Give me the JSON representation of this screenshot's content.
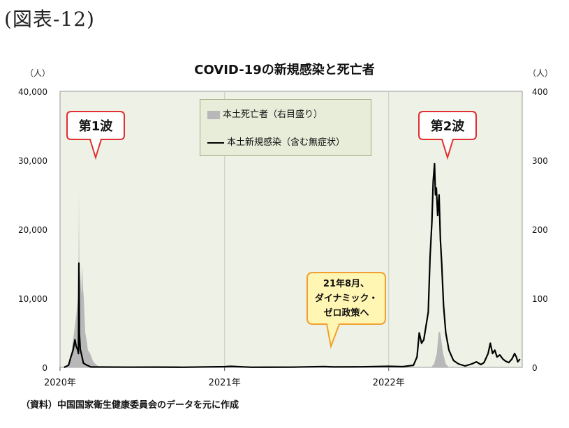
{
  "figure_label": "(図表-12)",
  "source_note": "（資料）中国国家衛生健康委員会のデータを元に作成",
  "colors": {
    "plot_bg": "#eef2e6",
    "deaths_fill": "#b8b8b8",
    "cases_line": "#000000",
    "callout_red_border": "#e03030",
    "callout_yellow_fill": "#fff6b3",
    "callout_yellow_border": "#f0a030"
  },
  "chart_data": {
    "type": "area",
    "title": "COVID-19の新規感染と死亡者",
    "left_unit": "（人）",
    "right_unit": "（人）",
    "y_left_range": [
      0,
      40000
    ],
    "y_right_range": [
      0,
      400
    ],
    "y_left_ticks": [
      "0",
      "10,000",
      "20,000",
      "30,000",
      "40,000"
    ],
    "y_right_ticks": [
      "0",
      "100",
      "200",
      "300",
      "400"
    ],
    "x_ticks": [
      "2020年",
      "2021年",
      "2022年"
    ],
    "grid": "vertical year lines",
    "legend_position": "top-center",
    "legend": [
      "本土死亡者（右目盛り）",
      "本土新規感染（含む無症状）"
    ],
    "series": [
      {
        "name": "本土新規感染（含む無症状）",
        "axis": "left",
        "style": "line",
        "points": [
          [
            "2020-01-10",
            0
          ],
          [
            "2020-01-20",
            300
          ],
          [
            "2020-01-25",
            1500
          ],
          [
            "2020-01-30",
            2500
          ],
          [
            "2020-02-03",
            4000
          ],
          [
            "2020-02-06",
            3000
          ],
          [
            "2020-02-09",
            2600
          ],
          [
            "2020-02-11",
            2000
          ],
          [
            "2020-02-12",
            15100
          ],
          [
            "2020-02-13",
            5000
          ],
          [
            "2020-02-15",
            2600
          ],
          [
            "2020-02-18",
            1800
          ],
          [
            "2020-02-22",
            600
          ],
          [
            "2020-03-01",
            300
          ],
          [
            "2020-03-10",
            50
          ],
          [
            "2020-04-01",
            50
          ],
          [
            "2020-06-01",
            30
          ],
          [
            "2020-08-01",
            40
          ],
          [
            "2020-10-01",
            20
          ],
          [
            "2021-01-01",
            100
          ],
          [
            "2021-01-15",
            150
          ],
          [
            "2021-03-01",
            20
          ],
          [
            "2021-06-01",
            30
          ],
          [
            "2021-08-10",
            120
          ],
          [
            "2021-09-01",
            60
          ],
          [
            "2021-11-01",
            80
          ],
          [
            "2022-01-01",
            150
          ],
          [
            "2022-02-01",
            100
          ],
          [
            "2022-02-25",
            300
          ],
          [
            "2022-03-05",
            1500
          ],
          [
            "2022-03-10",
            5000
          ],
          [
            "2022-03-15",
            3500
          ],
          [
            "2022-03-20",
            4000
          ],
          [
            "2022-03-25",
            6000
          ],
          [
            "2022-03-30",
            8000
          ],
          [
            "2022-04-03",
            16000
          ],
          [
            "2022-04-07",
            21000
          ],
          [
            "2022-04-10",
            27000
          ],
          [
            "2022-04-13",
            29500
          ],
          [
            "2022-04-15",
            25000
          ],
          [
            "2022-04-17",
            26000
          ],
          [
            "2022-04-20",
            22000
          ],
          [
            "2022-04-23",
            25000
          ],
          [
            "2022-04-26",
            18500
          ],
          [
            "2022-04-29",
            15000
          ],
          [
            "2022-05-03",
            9000
          ],
          [
            "2022-05-08",
            5000
          ],
          [
            "2022-05-15",
            2500
          ],
          [
            "2022-05-25",
            1000
          ],
          [
            "2022-06-05",
            500
          ],
          [
            "2022-06-20",
            200
          ],
          [
            "2022-07-05",
            500
          ],
          [
            "2022-07-15",
            800
          ],
          [
            "2022-07-25",
            400
          ],
          [
            "2022-08-01",
            700
          ],
          [
            "2022-08-10",
            2000
          ],
          [
            "2022-08-15",
            3500
          ],
          [
            "2022-08-20",
            2000
          ],
          [
            "2022-08-25",
            2500
          ],
          [
            "2022-08-30",
            1500
          ],
          [
            "2022-09-05",
            1800
          ],
          [
            "2022-09-12",
            1200
          ],
          [
            "2022-09-18",
            900
          ],
          [
            "2022-09-25",
            700
          ],
          [
            "2022-10-02",
            1200
          ],
          [
            "2022-10-08",
            2000
          ],
          [
            "2022-10-12",
            1500
          ],
          [
            "2022-10-15",
            800
          ],
          [
            "2022-10-20",
            1200
          ]
        ]
      },
      {
        "name": "本土死亡者（右目盛り）",
        "axis": "right",
        "style": "area",
        "points": [
          [
            "2020-01-20",
            0
          ],
          [
            "2020-01-25",
            15
          ],
          [
            "2020-01-30",
            40
          ],
          [
            "2020-02-03",
            60
          ],
          [
            "2020-02-06",
            75
          ],
          [
            "2020-02-09",
            95
          ],
          [
            "2020-02-11",
            110
          ],
          [
            "2020-02-12",
            255
          ],
          [
            "2020-02-13",
            120
          ],
          [
            "2020-02-15",
            140
          ],
          [
            "2020-02-17",
            105
          ],
          [
            "2020-02-19",
            150
          ],
          [
            "2020-02-21",
            115
          ],
          [
            "2020-02-23",
            100
          ],
          [
            "2020-02-26",
            50
          ],
          [
            "2020-02-29",
            40
          ],
          [
            "2020-03-03",
            25
          ],
          [
            "2020-03-08",
            20
          ],
          [
            "2020-03-15",
            8
          ],
          [
            "2020-03-25",
            2
          ],
          [
            "2020-04-10",
            0
          ],
          [
            "2022-04-05",
            0
          ],
          [
            "2022-04-12",
            5
          ],
          [
            "2022-04-18",
            20
          ],
          [
            "2022-04-22",
            50
          ],
          [
            "2022-04-25",
            52
          ],
          [
            "2022-04-28",
            40
          ],
          [
            "2022-05-02",
            20
          ],
          [
            "2022-05-08",
            5
          ],
          [
            "2022-05-15",
            0
          ]
        ]
      }
    ],
    "annotations": [
      {
        "text": "第1波",
        "style": "red-callout",
        "date": "2020-02-12"
      },
      {
        "text": "第2波",
        "style": "red-callout",
        "date": "2022-04-13"
      },
      {
        "lines": [
          "21年8月、",
          "ダイナミック・",
          "ゼロ政策へ"
        ],
        "style": "yellow-callout",
        "date": "2021-08-15"
      }
    ]
  }
}
